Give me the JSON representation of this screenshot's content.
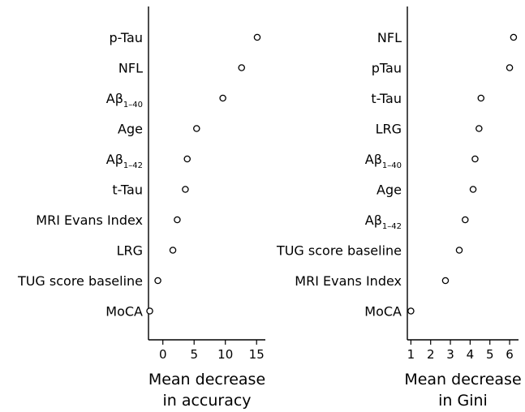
{
  "chart_data": [
    {
      "type": "scatter",
      "title": "",
      "xlabel_lines": [
        "Mean decrease",
        "in accuracy"
      ],
      "xlim": [
        -2.3,
        16.4
      ],
      "xticks": [
        0,
        5,
        10,
        15
      ],
      "categories": [
        {
          "label": "p-Tau",
          "sub": ""
        },
        {
          "label": "NFL",
          "sub": ""
        },
        {
          "label": "Aβ",
          "sub": "1–40"
        },
        {
          "label": "Age",
          "sub": ""
        },
        {
          "label": "Aβ",
          "sub": "1–42"
        },
        {
          "label": "t-Tau",
          "sub": ""
        },
        {
          "label": "MRI Evans Index",
          "sub": ""
        },
        {
          "label": "LRG",
          "sub": ""
        },
        {
          "label": "TUG score baseline",
          "sub": ""
        },
        {
          "label": "MoCA",
          "sub": ""
        }
      ],
      "values": [
        15.1,
        12.6,
        9.6,
        5.4,
        3.9,
        3.6,
        2.3,
        1.6,
        -0.8,
        -2.1
      ]
    },
    {
      "type": "scatter",
      "title": "",
      "xlabel_lines": [
        "Mean decrease",
        "in Gini"
      ],
      "xlim": [
        0.82,
        6.45
      ],
      "xticks": [
        1,
        2,
        3,
        4,
        5,
        6
      ],
      "categories": [
        {
          "label": "NFL",
          "sub": ""
        },
        {
          "label": "pTau",
          "sub": ""
        },
        {
          "label": "t-Tau",
          "sub": ""
        },
        {
          "label": "LRG",
          "sub": ""
        },
        {
          "label": "Aβ",
          "sub": "1–40"
        },
        {
          "label": "Age",
          "sub": ""
        },
        {
          "label": "Aβ",
          "sub": "1–42"
        },
        {
          "label": "TUG score baseline",
          "sub": ""
        },
        {
          "label": "MRI Evans Index",
          "sub": ""
        },
        {
          "label": "MoCA",
          "sub": ""
        }
      ],
      "values": [
        6.2,
        6.0,
        4.55,
        4.45,
        4.25,
        4.15,
        3.75,
        3.45,
        2.75,
        1.0
      ]
    }
  ]
}
